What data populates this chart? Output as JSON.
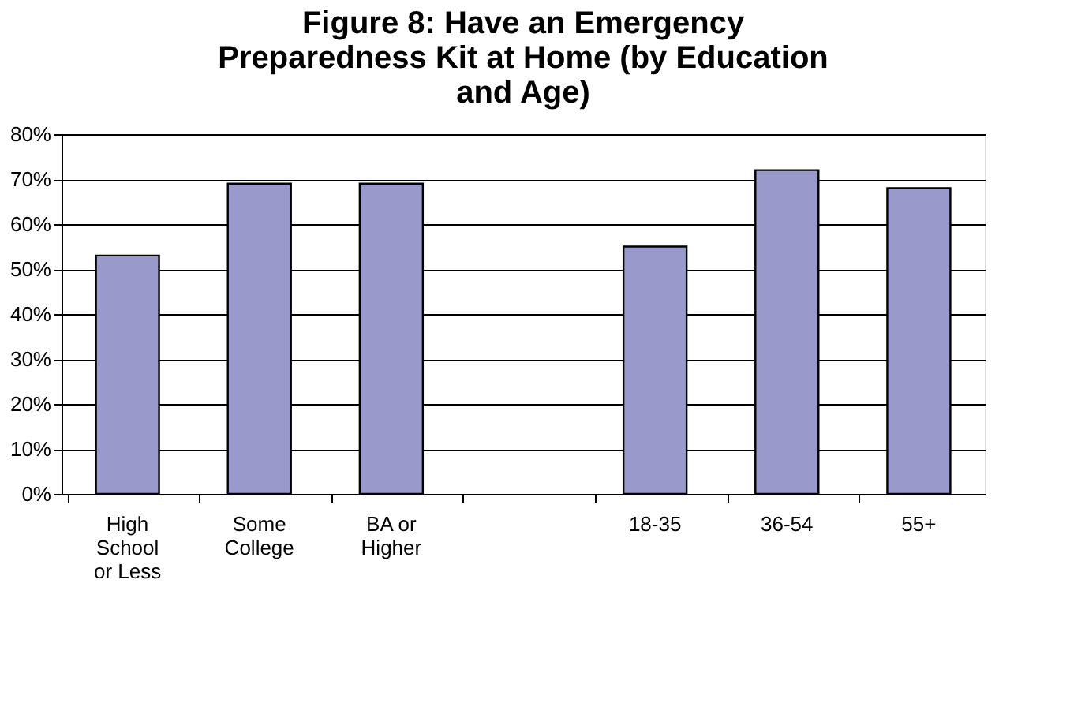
{
  "chart_data": {
    "type": "bar",
    "title": "Figure 8: Have an Emergency Preparedness Kit at Home (by Education and Age)",
    "categories": [
      "High School or Less",
      "Some College",
      "BA or Higher",
      null,
      "18-35",
      "36-54",
      "55+"
    ],
    "values": [
      53,
      69,
      69,
      null,
      55,
      72,
      68
    ],
    "color": "#9999cc",
    "ylim": [
      0,
      80
    ],
    "yticks": [
      {
        "value": 0,
        "label": "0%"
      },
      {
        "value": 10,
        "label": "10%"
      },
      {
        "value": 20,
        "label": "20%"
      },
      {
        "value": 30,
        "label": "30%"
      },
      {
        "value": 40,
        "label": "40%"
      },
      {
        "value": 50,
        "label": "50%"
      },
      {
        "value": 60,
        "label": "60%"
      },
      {
        "value": 70,
        "label": "70%"
      },
      {
        "value": 80,
        "label": "80%"
      }
    ],
    "grid": "y"
  }
}
